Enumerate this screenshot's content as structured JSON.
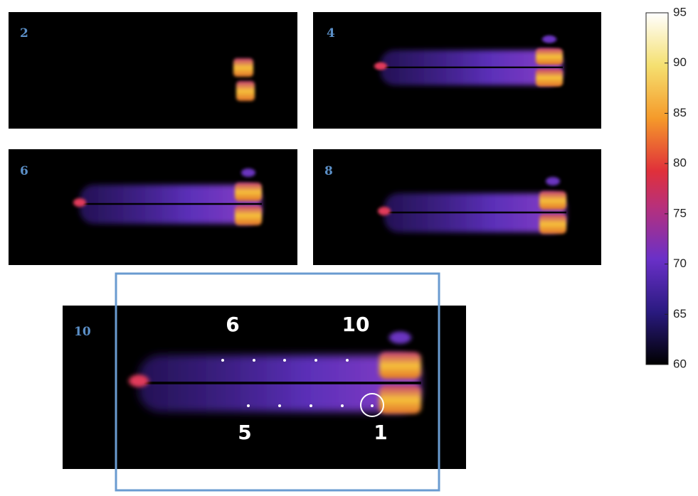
{
  "panels": [
    {
      "label": "2"
    },
    {
      "label": "4"
    },
    {
      "label": "6"
    },
    {
      "label": "8"
    },
    {
      "label": "10"
    }
  ],
  "annotations": [
    "6",
    "10",
    "5",
    "1"
  ],
  "colorbar": {
    "range": [
      60,
      95
    ],
    "ticks": [
      95,
      90,
      85,
      80,
      75,
      70,
      65,
      60
    ]
  }
}
